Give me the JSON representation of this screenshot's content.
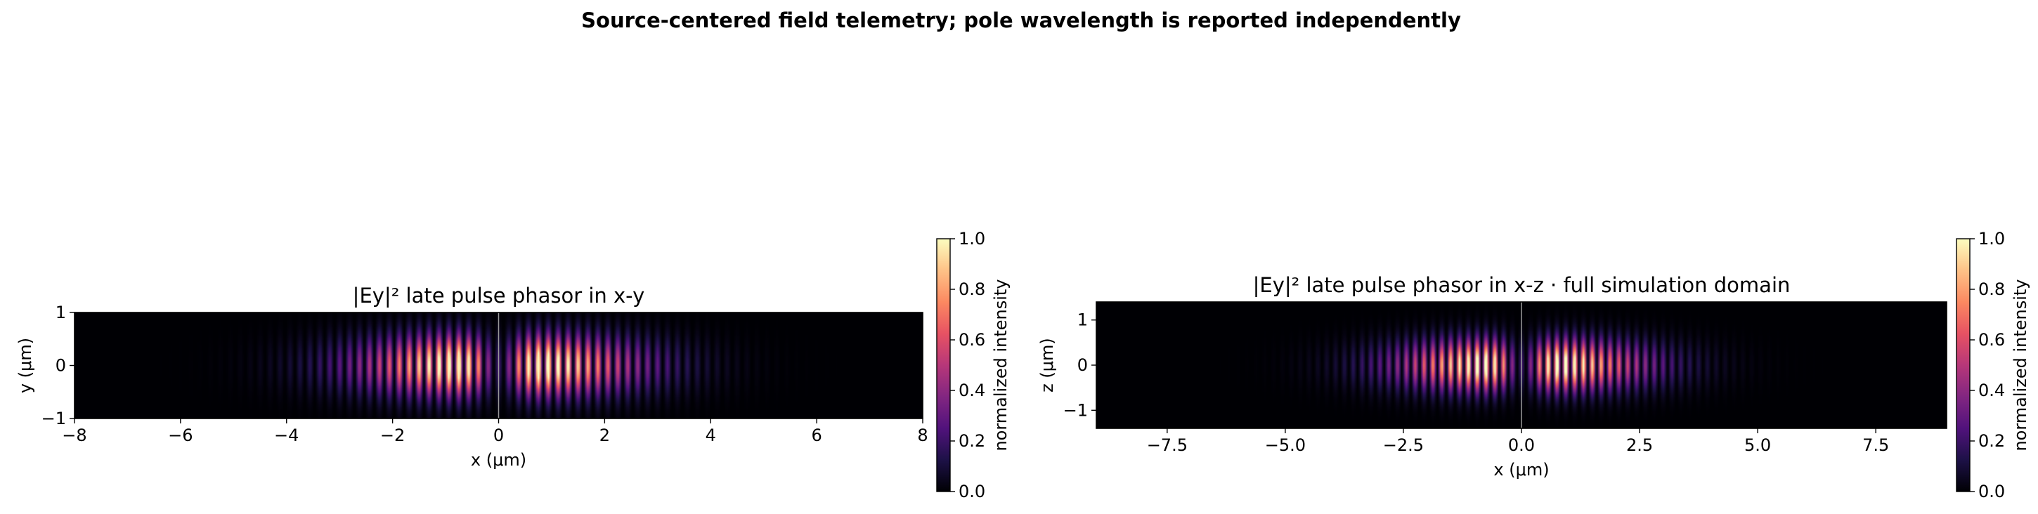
{
  "figure_title": "Source-centered field telemetry; pole wavelength is reported independently",
  "colorbar_label": "normalized intensity",
  "colorbar_ticks": [
    "0.0",
    "0.2",
    "0.4",
    "0.6",
    "0.8",
    "1.0"
  ],
  "colormap": "magma",
  "colormap_stops": [
    "#000004",
    "#1d1147",
    "#51127c",
    "#822681",
    "#b73779",
    "#e75263",
    "#fc8961",
    "#fec287",
    "#fcfdbf"
  ],
  "source_marker_color": "#9a9a9a",
  "chart_data": [
    {
      "type": "heatmap",
      "title": "|Ey|² late pulse phasor in x-y",
      "xlabel": "x (μm)",
      "ylabel": "y (μm)",
      "xlim": [
        -8,
        8
      ],
      "ylim": [
        -1,
        1
      ],
      "xticks": [
        -8,
        -6,
        -4,
        -2,
        0,
        2,
        4,
        6,
        8
      ],
      "xtick_labels": [
        "−8",
        "−6",
        "−4",
        "−2",
        "0",
        "2",
        "4",
        "6",
        "8"
      ],
      "yticks": [
        -1,
        0,
        1
      ],
      "ytick_labels": [
        "−1",
        "0",
        "1"
      ],
      "value_range": [
        0,
        1
      ],
      "fringe_period_um": 0.375,
      "envelope_center_um": 0,
      "envelope_width_um": 2.4,
      "central_node_um": 0,
      "peak_positions_um": [
        -0.75,
        0.75
      ],
      "transverse_width_um": 0.55,
      "source_line_x_um": 0
    },
    {
      "type": "heatmap",
      "title": "|Ey|² late pulse phasor in x-z · full simulation domain",
      "xlabel": "x (μm)",
      "ylabel": "z (μm)",
      "xlim": [
        -9,
        9
      ],
      "ylim": [
        -1.4,
        1.4
      ],
      "xticks": [
        -7.5,
        -5.0,
        -2.5,
        0.0,
        2.5,
        5.0,
        7.5
      ],
      "xtick_labels": [
        "−7.5",
        "−5.0",
        "−2.5",
        "0.0",
        "2.5",
        "5.0",
        "7.5"
      ],
      "yticks": [
        -1,
        0,
        1
      ],
      "ytick_labels": [
        "−1",
        "0",
        "1"
      ],
      "value_range": [
        0,
        1
      ],
      "fringe_period_um": 0.375,
      "envelope_center_um": 0,
      "envelope_width_um": 2.4,
      "central_node_um": 0,
      "peak_positions_um": [
        -0.75,
        0.75
      ],
      "transverse_width_um": 0.55,
      "source_line_x_um": 0
    }
  ]
}
